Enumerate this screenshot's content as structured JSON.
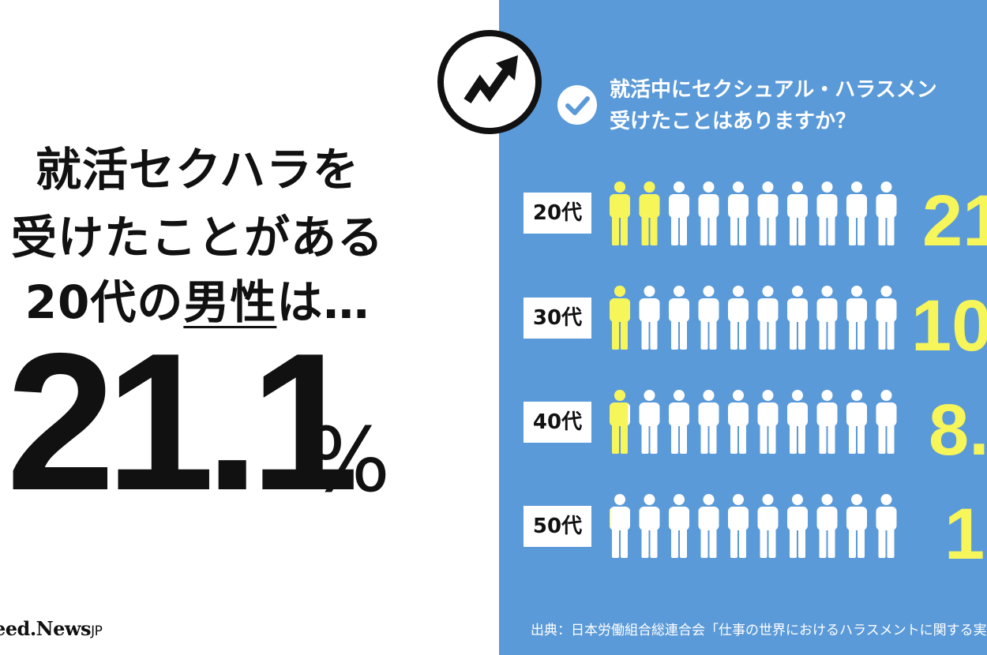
{
  "headline": {
    "line1": "就活セクハラを",
    "line2": "受けたことがある",
    "line3_prefix": "20代の",
    "line3_emphasis": "男性",
    "line3_suffix": "は…",
    "big_number": "21.1",
    "big_unit": "%"
  },
  "logo": {
    "text": "eed.News",
    "suffix": "JP"
  },
  "question": {
    "line1": "就活中にセクシュアル・ハラスメン",
    "line2": "受けたことはありますか？"
  },
  "source": "出典：日本労働組合総連合会「仕事の世界におけるハラスメントに関する実",
  "colors": {
    "panel_bg": "#5b9ad8",
    "highlight": "#f6f55a",
    "person": "#ffffff",
    "text": "#111111"
  },
  "icons": {
    "badge": "trend-arrow-icon",
    "check": "check-circle-icon",
    "person": "person-icon"
  },
  "chart_data": {
    "type": "pictogram",
    "unit_per_icon": "10%",
    "icons_per_row": 10,
    "categories": [
      "20代",
      "30代",
      "40代",
      "50代"
    ],
    "values": [
      21.1,
      10.5,
      8.0,
      1.5
    ],
    "value_labels": [
      "21",
      "10.",
      "8.",
      "1."
    ]
  }
}
